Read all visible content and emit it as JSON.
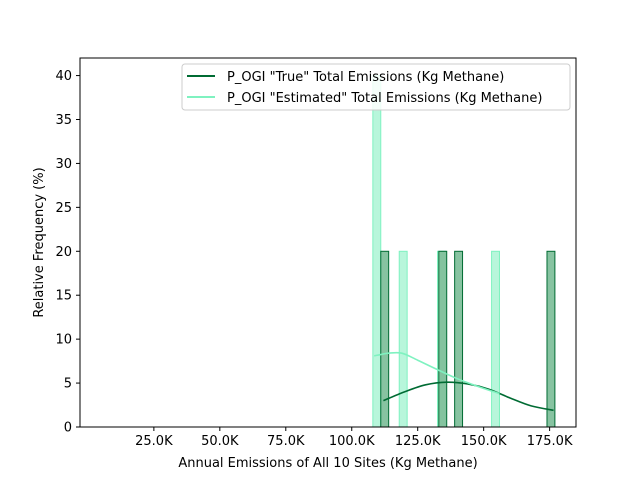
{
  "chart_data": {
    "type": "histogram",
    "xlabel": "Annual Emissions of All 10 Sites (Kg Methane)",
    "ylabel": "Relative Frequency (%)",
    "xlim": [
      -3000,
      185000
    ],
    "ylim": [
      0,
      42
    ],
    "x_ticks": [
      {
        "value": 25000,
        "label": "25.0K"
      },
      {
        "value": 50000,
        "label": "50.0K"
      },
      {
        "value": 75000,
        "label": "75.0K"
      },
      {
        "value": 100000,
        "label": "100.0K"
      },
      {
        "value": 125000,
        "label": "125.0K"
      },
      {
        "value": 150000,
        "label": "150.0K"
      },
      {
        "value": 175000,
        "label": "175.0K"
      }
    ],
    "y_ticks": [
      0,
      5,
      10,
      15,
      20,
      25,
      30,
      35,
      40
    ],
    "legend_position": "top-right",
    "series": [
      {
        "name": "P_OGI \"True\" Total Emissions (Kg Methane)",
        "color": "#006b33",
        "bar_fill": "#81c09c",
        "bins": [
          {
            "x0": 111000,
            "x1": 114000,
            "value": 20
          },
          {
            "x0": 133000,
            "x1": 136000,
            "value": 20
          },
          {
            "x0": 139000,
            "x1": 142000,
            "value": 20
          },
          {
            "x0": 174000,
            "x1": 177000,
            "value": 20
          }
        ],
        "kde": [
          [
            112000,
            3.0
          ],
          [
            120000,
            4.0
          ],
          [
            128000,
            4.8
          ],
          [
            136000,
            5.1
          ],
          [
            144000,
            4.9
          ],
          [
            152000,
            4.3
          ],
          [
            160000,
            3.3
          ],
          [
            168000,
            2.4
          ],
          [
            176500,
            1.9
          ]
        ]
      },
      {
        "name": "P_OGI \"Estimated\" Total Emissions (Kg Methane)",
        "color": "#7ff2c0",
        "bar_fill": "#b0f5d7",
        "bins": [
          {
            "x0": 108000,
            "x1": 111000,
            "value": 40
          },
          {
            "x0": 118000,
            "x1": 121000,
            "value": 20
          },
          {
            "x0": 132500,
            "x1": 135500,
            "value": 20
          },
          {
            "x0": 153000,
            "x1": 156000,
            "value": 20
          }
        ],
        "kde": [
          [
            108500,
            8.1
          ],
          [
            114000,
            8.4
          ],
          [
            119000,
            8.4
          ],
          [
            125000,
            7.6
          ],
          [
            132000,
            6.6
          ],
          [
            140000,
            5.5
          ],
          [
            148000,
            4.6
          ],
          [
            156000,
            3.8
          ]
        ]
      }
    ]
  }
}
